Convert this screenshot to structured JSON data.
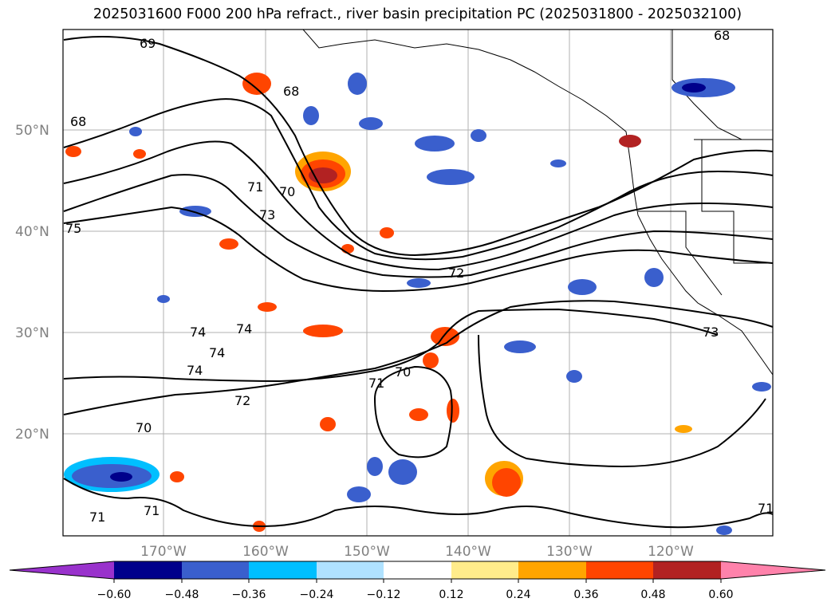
{
  "title": "2025031600 F000 200 hPa refract., river basin precipitation PC (2025031800 - 2025032100)",
  "map": {
    "lat_labels": [
      "50°N",
      "40°N",
      "30°N",
      "20°N"
    ],
    "lon_labels": [
      "170°W",
      "160°W",
      "150°W",
      "140°W",
      "130°W",
      "120°W"
    ],
    "contour_labels": [
      "69",
      "68",
      "68",
      "68",
      "71",
      "70",
      "73",
      "72",
      "75",
      "74",
      "74",
      "74",
      "74",
      "71",
      "70",
      "72",
      "70",
      "71",
      "71",
      "73",
      "71"
    ]
  },
  "colorbar": {
    "ticks": [
      "−0.60",
      "−0.48",
      "−0.36",
      "−0.24",
      "−0.12",
      "0.12",
      "0.24",
      "0.36",
      "0.48",
      "0.60"
    ],
    "colors": [
      "#9932cc",
      "#00008b",
      "#3a5fcd",
      "#00bfff",
      "#b0e2ff",
      "#ffffff",
      "#ffec8b",
      "#ffa500",
      "#ff4500",
      "#b22222",
      "#ff82ab"
    ]
  },
  "colors": {
    "land_outline": "#000000",
    "grid": "#b0b0b0",
    "contour": "#000000"
  }
}
